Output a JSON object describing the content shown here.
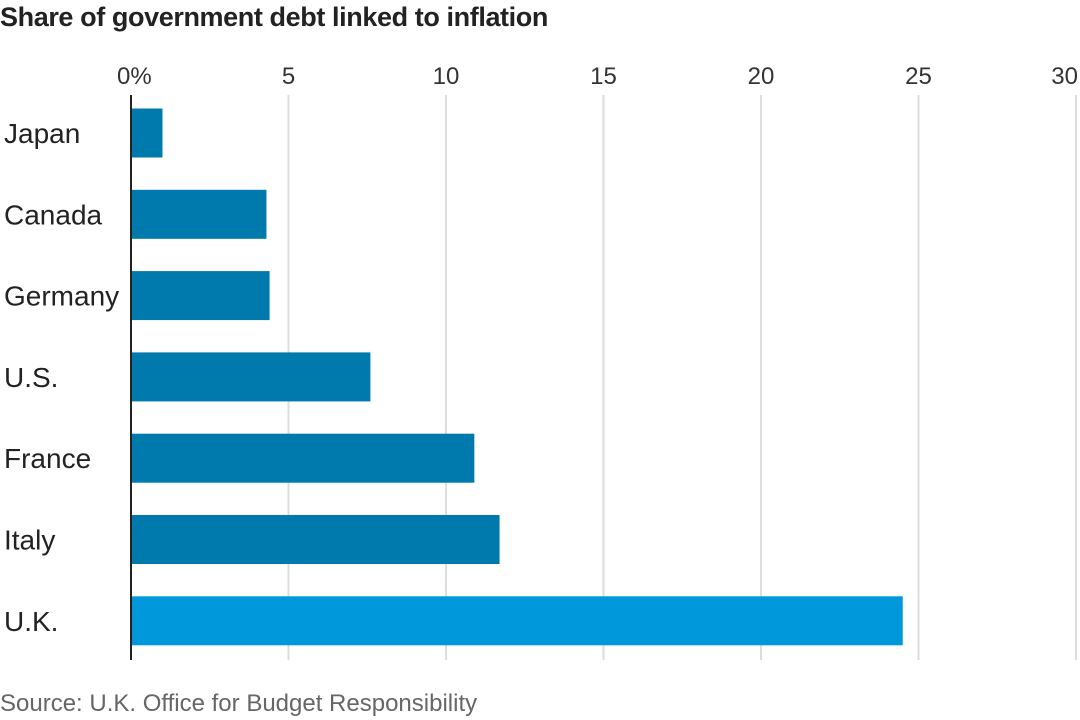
{
  "chart_data": {
    "type": "bar",
    "orientation": "horizontal",
    "title": "Share of government debt linked to inflation",
    "source": "Source: U.K. Office for Budget Responsibility",
    "categories": [
      "Japan",
      "Canada",
      "Germany",
      "U.S.",
      "France",
      "Italy",
      "U.K."
    ],
    "values": [
      1.0,
      4.3,
      4.4,
      7.6,
      10.9,
      11.7,
      24.5
    ],
    "xlim": [
      0,
      30
    ],
    "xticks": [
      0,
      5,
      10,
      15,
      20,
      25,
      30
    ],
    "xtick_labels": [
      "0%",
      "5",
      "10",
      "15",
      "20",
      "25",
      "30"
    ],
    "grid": "vertical",
    "colors": {
      "default": "#0079ad",
      "highlight": "#0098da",
      "highlight_category": "U.K."
    }
  }
}
